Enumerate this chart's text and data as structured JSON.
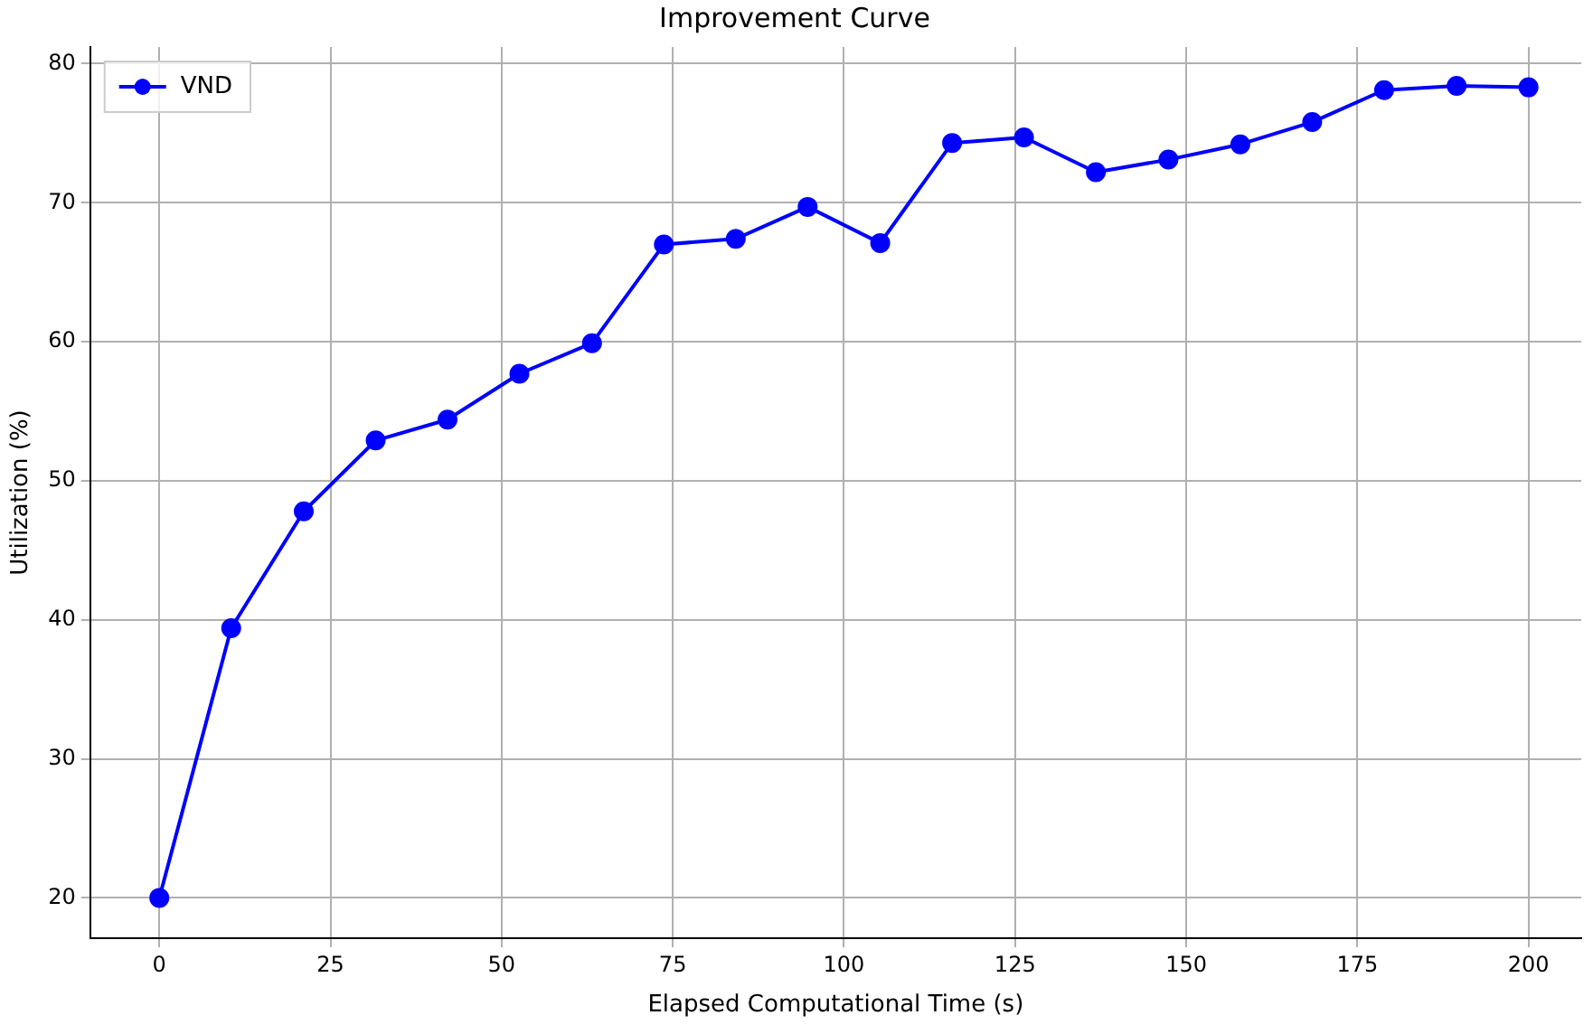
{
  "chart_data": {
    "type": "line",
    "title": "Improvement Curve",
    "xlabel": "Elapsed Computational Time (s)",
    "ylabel": "Utilization (%)",
    "x": [
      0,
      10.5,
      21.1,
      31.6,
      42.1,
      52.6,
      63.2,
      73.7,
      84.2,
      94.7,
      105.3,
      115.8,
      126.3,
      136.8,
      147.4,
      157.9,
      168.4,
      178.9,
      189.5,
      200
    ],
    "series": [
      {
        "name": "VND",
        "color": "#0000ff",
        "values": [
          20,
          39.4,
          47.8,
          52.9,
          54.4,
          57.7,
          59.9,
          67.0,
          67.4,
          69.7,
          67.1,
          74.3,
          74.7,
          72.2,
          73.1,
          74.2,
          75.8,
          78.1,
          78.4,
          78.3
        ]
      }
    ],
    "xlim": [
      -10.1,
      207.7
    ],
    "xticks": [
      0,
      25,
      50,
      75,
      100,
      125,
      150,
      175,
      200
    ],
    "ylim": [
      17.1,
      81.2
    ],
    "yticks": [
      20,
      30,
      40,
      50,
      60,
      70,
      80
    ],
    "grid": true,
    "legend": "top left",
    "marker": "circle",
    "line_style": "solid"
  }
}
